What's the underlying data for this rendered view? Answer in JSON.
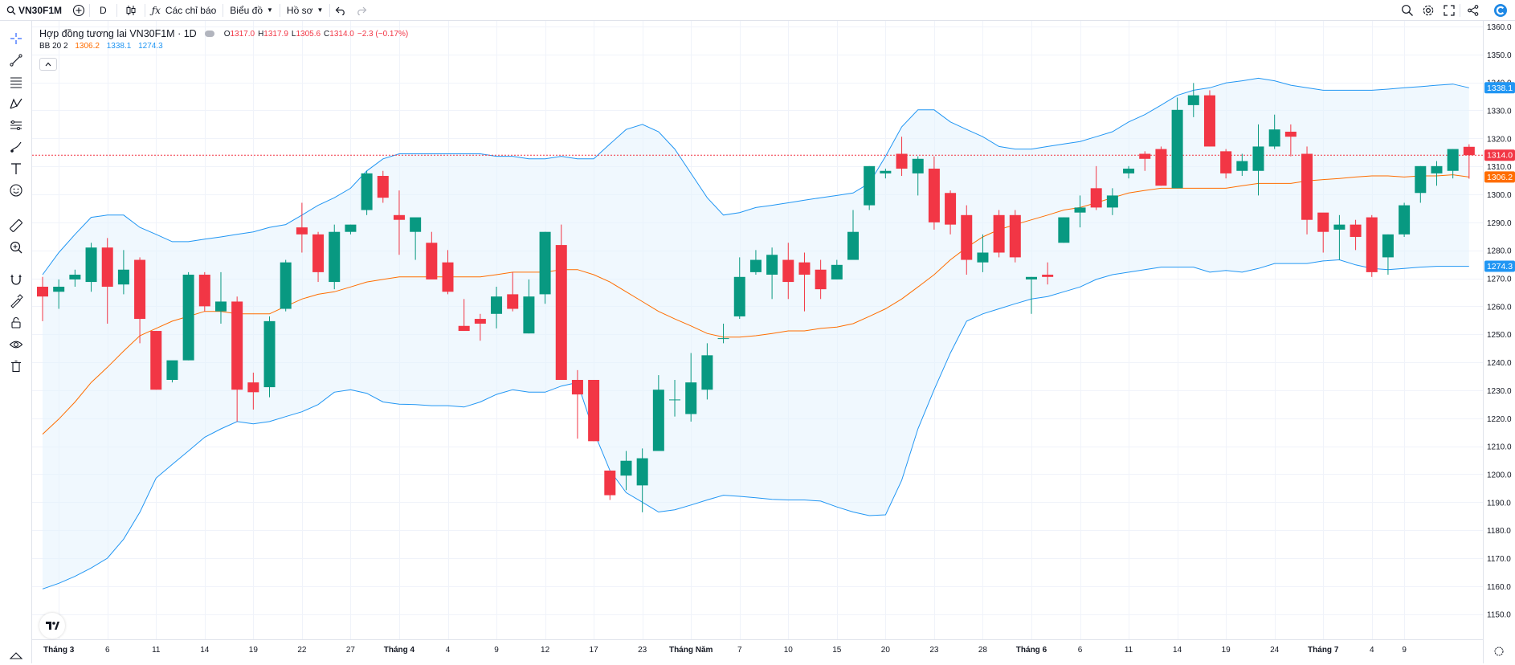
{
  "toolbar": {
    "symbol": "VN30F1M",
    "interval": "D",
    "indicators_label": "Các chỉ báo",
    "chart_label": "Biểu đồ",
    "profile_label": "Hồ sơ"
  },
  "legend": {
    "title": "Hợp đồng tương lai VN30F1M · 1D",
    "o_key": "O",
    "o_val": "1317.0",
    "h_key": "H",
    "h_val": "1317.9",
    "l_key": "L",
    "l_val": "1305.6",
    "c_key": "C",
    "c_val": "1314.0",
    "change": "−2.3 (−0.17%)",
    "bb_label": "BB 20 2",
    "bb_basis": "1306.2",
    "bb_upper": "1338.1",
    "bb_lower": "1274.3"
  },
  "colors": {
    "up": "#089981",
    "down": "#f23645",
    "bb_basis": "#ff6d00",
    "bb_band": "#2196f3",
    "bb_fill": "#e3f2fd"
  },
  "icons": {
    "left": [
      "crosshair-icon",
      "trendline-icon",
      "fib-retracement-icon",
      "pattern-icon",
      "prediction-icon",
      "brush-icon",
      "text-icon",
      "emoji-icon",
      "ruler-icon",
      "zoom-in-icon",
      "magnet-icon",
      "lock-drawings-icon",
      "lock-icon",
      "eye-icon",
      "trash-icon"
    ],
    "right": [
      "search-icon",
      "settings-icon",
      "fullscreen-icon",
      "share-icon",
      "brand-logo-icon"
    ]
  },
  "chart_data": {
    "type": "candlestick",
    "title": "Hợp đồng tương lai VN30F1M · 1D",
    "ylim": [
      1141,
      1362
    ],
    "y_ticks": [
      1150,
      1160,
      1170,
      1180,
      1190,
      1200,
      1210,
      1220,
      1230,
      1240,
      1250,
      1260,
      1270,
      1280,
      1290,
      1300,
      1310,
      1320,
      1330,
      1340,
      1350,
      1360
    ],
    "x_labels": [
      {
        "i": 1,
        "label": "Tháng 3"
      },
      {
        "i": 4,
        "label": "6"
      },
      {
        "i": 7,
        "label": "11"
      },
      {
        "i": 10,
        "label": "14"
      },
      {
        "i": 13,
        "label": "19"
      },
      {
        "i": 16,
        "label": "22"
      },
      {
        "i": 19,
        "label": "27"
      },
      {
        "i": 22,
        "label": "Tháng 4"
      },
      {
        "i": 25,
        "label": "4"
      },
      {
        "i": 28,
        "label": "9"
      },
      {
        "i": 31,
        "label": "12"
      },
      {
        "i": 34,
        "label": "17"
      },
      {
        "i": 37,
        "label": "23"
      },
      {
        "i": 40,
        "label": "Tháng Năm"
      },
      {
        "i": 43,
        "label": "7"
      },
      {
        "i": 46,
        "label": "10"
      },
      {
        "i": 49,
        "label": "15"
      },
      {
        "i": 52,
        "label": "20"
      },
      {
        "i": 55,
        "label": "23"
      },
      {
        "i": 58,
        "label": "28"
      },
      {
        "i": 61,
        "label": "Tháng 6"
      },
      {
        "i": 64,
        "label": "6"
      },
      {
        "i": 67,
        "label": "11"
      },
      {
        "i": 70,
        "label": "14"
      },
      {
        "i": 73,
        "label": "19"
      },
      {
        "i": 76,
        "label": "24"
      },
      {
        "i": 79,
        "label": "Tháng 7"
      },
      {
        "i": 82,
        "label": "4"
      },
      {
        "i": 84,
        "label": "9"
      }
    ],
    "candles": [
      {
        "o": 1267.0,
        "h": 1270.5,
        "l": 1254.7,
        "c": 1263.5
      },
      {
        "o": 1265.2,
        "h": 1269.6,
        "l": 1259.1,
        "c": 1267.0
      },
      {
        "o": 1269.6,
        "h": 1273.1,
        "l": 1267.0,
        "c": 1271.3
      },
      {
        "o": 1268.7,
        "h": 1282.7,
        "l": 1265.2,
        "c": 1281.0
      },
      {
        "o": 1281.0,
        "h": 1284.4,
        "l": 1253.8,
        "c": 1267.0
      },
      {
        "o": 1267.8,
        "h": 1280.1,
        "l": 1264.3,
        "c": 1273.1
      },
      {
        "o": 1276.6,
        "h": 1277.5,
        "l": 1246.8,
        "c": 1255.5
      },
      {
        "o": 1251.2,
        "h": 1251.2,
        "l": 1230.2,
        "c": 1230.2
      },
      {
        "o": 1233.7,
        "h": 1239.8,
        "l": 1232.8,
        "c": 1240.7
      },
      {
        "o": 1240.7,
        "h": 1272.2,
        "l": 1240.7,
        "c": 1271.3
      },
      {
        "o": 1271.3,
        "h": 1272.2,
        "l": 1258.2,
        "c": 1260.0
      },
      {
        "o": 1258.2,
        "h": 1272.2,
        "l": 1253.8,
        "c": 1261.7
      },
      {
        "o": 1261.7,
        "h": 1263.5,
        "l": 1218.8,
        "c": 1230.2
      },
      {
        "o": 1232.8,
        "h": 1236.3,
        "l": 1223.1,
        "c": 1229.3
      },
      {
        "o": 1231.1,
        "h": 1256.4,
        "l": 1227.5,
        "c": 1254.7
      },
      {
        "o": 1259.1,
        "h": 1276.6,
        "l": 1258.2,
        "c": 1275.7
      },
      {
        "o": 1288.2,
        "h": 1297.0,
        "l": 1279.2,
        "c": 1285.7
      },
      {
        "o": 1285.7,
        "h": 1286.6,
        "l": 1268.7,
        "c": 1272.2
      },
      {
        "o": 1268.7,
        "h": 1289.2,
        "l": 1266.1,
        "c": 1286.6
      },
      {
        "o": 1286.6,
        "h": 1289.2,
        "l": 1285.7,
        "c": 1289.2
      },
      {
        "o": 1294.4,
        "h": 1308.4,
        "l": 1292.6,
        "c": 1307.5
      },
      {
        "o": 1306.6,
        "h": 1308.4,
        "l": 1297.0,
        "c": 1298.8
      },
      {
        "o": 1292.6,
        "h": 1301.4,
        "l": 1278.4,
        "c": 1290.9
      },
      {
        "o": 1286.6,
        "h": 1290.0,
        "l": 1276.6,
        "c": 1291.8
      },
      {
        "o": 1282.7,
        "h": 1286.6,
        "l": 1270.5,
        "c": 1269.6
      },
      {
        "o": 1275.7,
        "h": 1280.1,
        "l": 1264.3,
        "c": 1265.2
      },
      {
        "o": 1253.0,
        "h": 1262.6,
        "l": 1251.2,
        "c": 1251.2
      },
      {
        "o": 1255.5,
        "h": 1257.3,
        "l": 1247.7,
        "c": 1253.8
      },
      {
        "o": 1257.3,
        "h": 1267.0,
        "l": 1252.1,
        "c": 1263.5
      },
      {
        "o": 1264.3,
        "h": 1272.2,
        "l": 1258.2,
        "c": 1259.1
      },
      {
        "o": 1250.3,
        "h": 1269.6,
        "l": 1250.3,
        "c": 1263.5
      },
      {
        "o": 1264.3,
        "h": 1286.6,
        "l": 1260.9,
        "c": 1286.6
      },
      {
        "o": 1281.9,
        "h": 1289.2,
        "l": 1233.7,
        "c": 1233.7
      },
      {
        "o": 1233.7,
        "h": 1237.2,
        "l": 1212.7,
        "c": 1228.5
      },
      {
        "o": 1233.7,
        "h": 1233.7,
        "l": 1211.8,
        "c": 1211.8
      },
      {
        "o": 1201.3,
        "h": 1201.3,
        "l": 1190.8,
        "c": 1192.5
      },
      {
        "o": 1199.5,
        "h": 1208.3,
        "l": 1194.3,
        "c": 1204.8
      },
      {
        "o": 1196.0,
        "h": 1209.2,
        "l": 1186.4,
        "c": 1205.7
      },
      {
        "o": 1208.3,
        "h": 1235.4,
        "l": 1208.3,
        "c": 1230.2
      },
      {
        "o": 1226.7,
        "h": 1233.7,
        "l": 1220.6,
        "c": 1226.7
      },
      {
        "o": 1221.5,
        "h": 1243.3,
        "l": 1218.8,
        "c": 1232.8
      },
      {
        "o": 1230.2,
        "h": 1246.8,
        "l": 1226.7,
        "c": 1242.5
      },
      {
        "o": 1248.6,
        "h": 1253.8,
        "l": 1246.8,
        "c": 1248.6
      },
      {
        "o": 1256.4,
        "h": 1277.5,
        "l": 1255.5,
        "c": 1270.5
      },
      {
        "o": 1272.2,
        "h": 1280.1,
        "l": 1271.3,
        "c": 1276.6
      },
      {
        "o": 1271.3,
        "h": 1281.0,
        "l": 1262.6,
        "c": 1278.4
      },
      {
        "o": 1276.6,
        "h": 1282.7,
        "l": 1262.6,
        "c": 1268.7
      },
      {
        "o": 1275.7,
        "h": 1279.2,
        "l": 1258.2,
        "c": 1271.3
      },
      {
        "o": 1273.1,
        "h": 1276.6,
        "l": 1262.6,
        "c": 1266.1
      },
      {
        "o": 1269.6,
        "h": 1276.6,
        "l": 1269.6,
        "c": 1274.8
      },
      {
        "o": 1276.6,
        "h": 1294.4,
        "l": 1276.6,
        "c": 1286.6
      },
      {
        "o": 1296.1,
        "h": 1310.1,
        "l": 1294.4,
        "c": 1310.1
      },
      {
        "o": 1307.5,
        "h": 1309.2,
        "l": 1305.7,
        "c": 1308.4
      },
      {
        "o": 1314.5,
        "h": 1320.6,
        "l": 1306.6,
        "c": 1309.2
      },
      {
        "o": 1307.5,
        "h": 1313.6,
        "l": 1299.6,
        "c": 1312.7
      },
      {
        "o": 1309.2,
        "h": 1313.6,
        "l": 1287.4,
        "c": 1290.0
      },
      {
        "o": 1300.5,
        "h": 1301.4,
        "l": 1285.7,
        "c": 1289.2
      },
      {
        "o": 1292.6,
        "h": 1296.1,
        "l": 1271.3,
        "c": 1276.6
      },
      {
        "o": 1275.7,
        "h": 1285.7,
        "l": 1272.2,
        "c": 1279.2
      },
      {
        "o": 1292.6,
        "h": 1294.4,
        "l": 1277.5,
        "c": 1279.2
      },
      {
        "o": 1292.6,
        "h": 1294.4,
        "l": 1275.7,
        "c": 1277.5
      },
      {
        "o": 1269.6,
        "h": 1270.5,
        "l": 1257.3,
        "c": 1270.5
      },
      {
        "o": 1271.3,
        "h": 1275.7,
        "l": 1267.8,
        "c": 1270.5
      },
      {
        "o": 1282.7,
        "h": 1291.8,
        "l": 1282.7,
        "c": 1291.8
      },
      {
        "o": 1293.5,
        "h": 1299.6,
        "l": 1288.2,
        "c": 1295.3
      },
      {
        "o": 1302.2,
        "h": 1310.1,
        "l": 1294.4,
        "c": 1295.3
      },
      {
        "o": 1295.3,
        "h": 1302.2,
        "l": 1292.6,
        "c": 1299.6
      },
      {
        "o": 1307.5,
        "h": 1310.1,
        "l": 1305.7,
        "c": 1309.2
      },
      {
        "o": 1314.5,
        "h": 1315.4,
        "l": 1308.4,
        "c": 1312.7
      },
      {
        "o": 1316.2,
        "h": 1317.1,
        "l": 1303.1,
        "c": 1303.1
      },
      {
        "o": 1302.2,
        "h": 1334.6,
        "l": 1302.2,
        "c": 1330.2
      },
      {
        "o": 1331.9,
        "h": 1339.8,
        "l": 1327.6,
        "c": 1335.4
      },
      {
        "o": 1335.4,
        "h": 1337.2,
        "l": 1317.1,
        "c": 1317.1
      },
      {
        "o": 1315.4,
        "h": 1316.2,
        "l": 1305.7,
        "c": 1307.5
      },
      {
        "o": 1308.4,
        "h": 1314.5,
        "l": 1306.6,
        "c": 1311.9
      },
      {
        "o": 1308.4,
        "h": 1325.0,
        "l": 1299.6,
        "c": 1317.1
      },
      {
        "o": 1317.1,
        "h": 1328.5,
        "l": 1316.2,
        "c": 1323.2
      },
      {
        "o": 1322.4,
        "h": 1325.0,
        "l": 1313.6,
        "c": 1320.6
      },
      {
        "o": 1314.5,
        "h": 1317.1,
        "l": 1285.7,
        "c": 1290.9
      },
      {
        "o": 1293.5,
        "h": 1292.6,
        "l": 1279.2,
        "c": 1286.6
      },
      {
        "o": 1287.4,
        "h": 1292.6,
        "l": 1276.6,
        "c": 1289.2
      },
      {
        "o": 1289.2,
        "h": 1290.9,
        "l": 1280.1,
        "c": 1284.8
      },
      {
        "o": 1291.8,
        "h": 1292.6,
        "l": 1270.5,
        "c": 1272.2
      },
      {
        "o": 1277.5,
        "h": 1285.7,
        "l": 1271.3,
        "c": 1285.7
      },
      {
        "o": 1285.7,
        "h": 1297.0,
        "l": 1284.8,
        "c": 1296.1
      },
      {
        "o": 1300.5,
        "h": 1310.1,
        "l": 1297.0,
        "c": 1310.1
      },
      {
        "o": 1307.5,
        "h": 1311.9,
        "l": 1303.1,
        "c": 1310.1
      },
      {
        "o": 1308.4,
        "h": 1316.2,
        "l": 1305.7,
        "c": 1316.2
      },
      {
        "o": 1317.0,
        "h": 1317.9,
        "l": 1305.6,
        "c": 1314.0
      }
    ],
    "bb_upper": [
      1271.3,
      1279.2,
      1285.7,
      1291.8,
      1292.6,
      1292.6,
      1288.2,
      1285.7,
      1283.1,
      1283.1,
      1284.0,
      1284.8,
      1285.7,
      1286.6,
      1288.2,
      1289.2,
      1292.6,
      1296.1,
      1298.8,
      1302.2,
      1308.4,
      1312.7,
      1314.5,
      1314.5,
      1314.5,
      1314.5,
      1314.5,
      1314.5,
      1313.6,
      1313.6,
      1312.7,
      1312.7,
      1313.6,
      1312.7,
      1312.7,
      1318.0,
      1323.2,
      1325.0,
      1322.4,
      1316.2,
      1307.5,
      1298.8,
      1292.6,
      1293.5,
      1295.3,
      1296.1,
      1297.0,
      1297.9,
      1298.8,
      1299.6,
      1300.5,
      1304.0,
      1313.6,
      1324.1,
      1330.2,
      1330.2,
      1325.9,
      1323.2,
      1320.6,
      1317.1,
      1316.2,
      1316.2,
      1317.1,
      1318.0,
      1318.9,
      1320.6,
      1322.4,
      1325.9,
      1328.5,
      1331.9,
      1335.4,
      1337.2,
      1338.1,
      1339.8,
      1340.6,
      1341.5,
      1340.6,
      1339.0,
      1338.1,
      1337.2,
      1337.2,
      1337.2,
      1337.2,
      1337.6,
      1338.1,
      1338.5,
      1339.0,
      1339.4,
      1338.1
    ],
    "bb_basis": [
      1214.3,
      1219.7,
      1225.8,
      1232.8,
      1238.2,
      1244.0,
      1249.5,
      1252.1,
      1254.7,
      1256.4,
      1258.2,
      1258.2,
      1257.3,
      1257.3,
      1257.3,
      1260.0,
      1262.6,
      1264.3,
      1265.2,
      1266.9,
      1268.7,
      1269.6,
      1270.5,
      1270.5,
      1270.5,
      1270.5,
      1270.5,
      1270.5,
      1271.3,
      1272.2,
      1272.2,
      1272.2,
      1273.1,
      1273.1,
      1271.3,
      1268.7,
      1265.2,
      1261.7,
      1258.2,
      1255.5,
      1253.0,
      1250.3,
      1249.0,
      1249.0,
      1249.5,
      1250.3,
      1251.2,
      1251.2,
      1252.1,
      1252.6,
      1253.8,
      1256.4,
      1259.1,
      1262.6,
      1266.9,
      1271.3,
      1276.6,
      1281.0,
      1284.8,
      1287.4,
      1289.2,
      1290.9,
      1292.6,
      1294.4,
      1295.3,
      1297.0,
      1298.8,
      1300.5,
      1301.4,
      1302.2,
      1302.2,
      1302.2,
      1302.2,
      1302.2,
      1303.1,
      1303.9,
      1303.9,
      1303.9,
      1304.8,
      1305.3,
      1305.7,
      1306.2,
      1306.6,
      1306.6,
      1306.2,
      1306.6,
      1306.6,
      1307.0,
      1306.2
    ],
    "bb_lower": [
      1159.0,
      1161.0,
      1163.5,
      1166.5,
      1170.0,
      1176.8,
      1186.4,
      1198.6,
      1203.5,
      1208.3,
      1213.2,
      1216.2,
      1218.8,
      1218.0,
      1218.8,
      1220.6,
      1222.3,
      1224.9,
      1229.3,
      1230.2,
      1228.9,
      1225.8,
      1225.0,
      1224.9,
      1224.5,
      1224.5,
      1224.0,
      1225.8,
      1228.5,
      1230.2,
      1229.3,
      1229.3,
      1231.5,
      1232.8,
      1215.3,
      1201.3,
      1193.4,
      1190.0,
      1186.5,
      1187.3,
      1189.0,
      1190.8,
      1192.5,
      1192.1,
      1191.6,
      1191.0,
      1190.8,
      1190.8,
      1190.4,
      1188.3,
      1186.5,
      1185.2,
      1185.5,
      1197.8,
      1216.2,
      1230.2,
      1243.3,
      1254.7,
      1257.3,
      1259.1,
      1260.9,
      1262.6,
      1263.5,
      1265.2,
      1266.9,
      1269.6,
      1271.3,
      1272.2,
      1273.1,
      1274.0,
      1274.0,
      1274.0,
      1272.2,
      1272.8,
      1272.2,
      1273.5,
      1275.3,
      1275.3,
      1275.3,
      1276.2,
      1276.6,
      1274.8,
      1273.5,
      1273.1,
      1273.5,
      1274.0,
      1274.3,
      1274.3,
      1274.3
    ]
  }
}
